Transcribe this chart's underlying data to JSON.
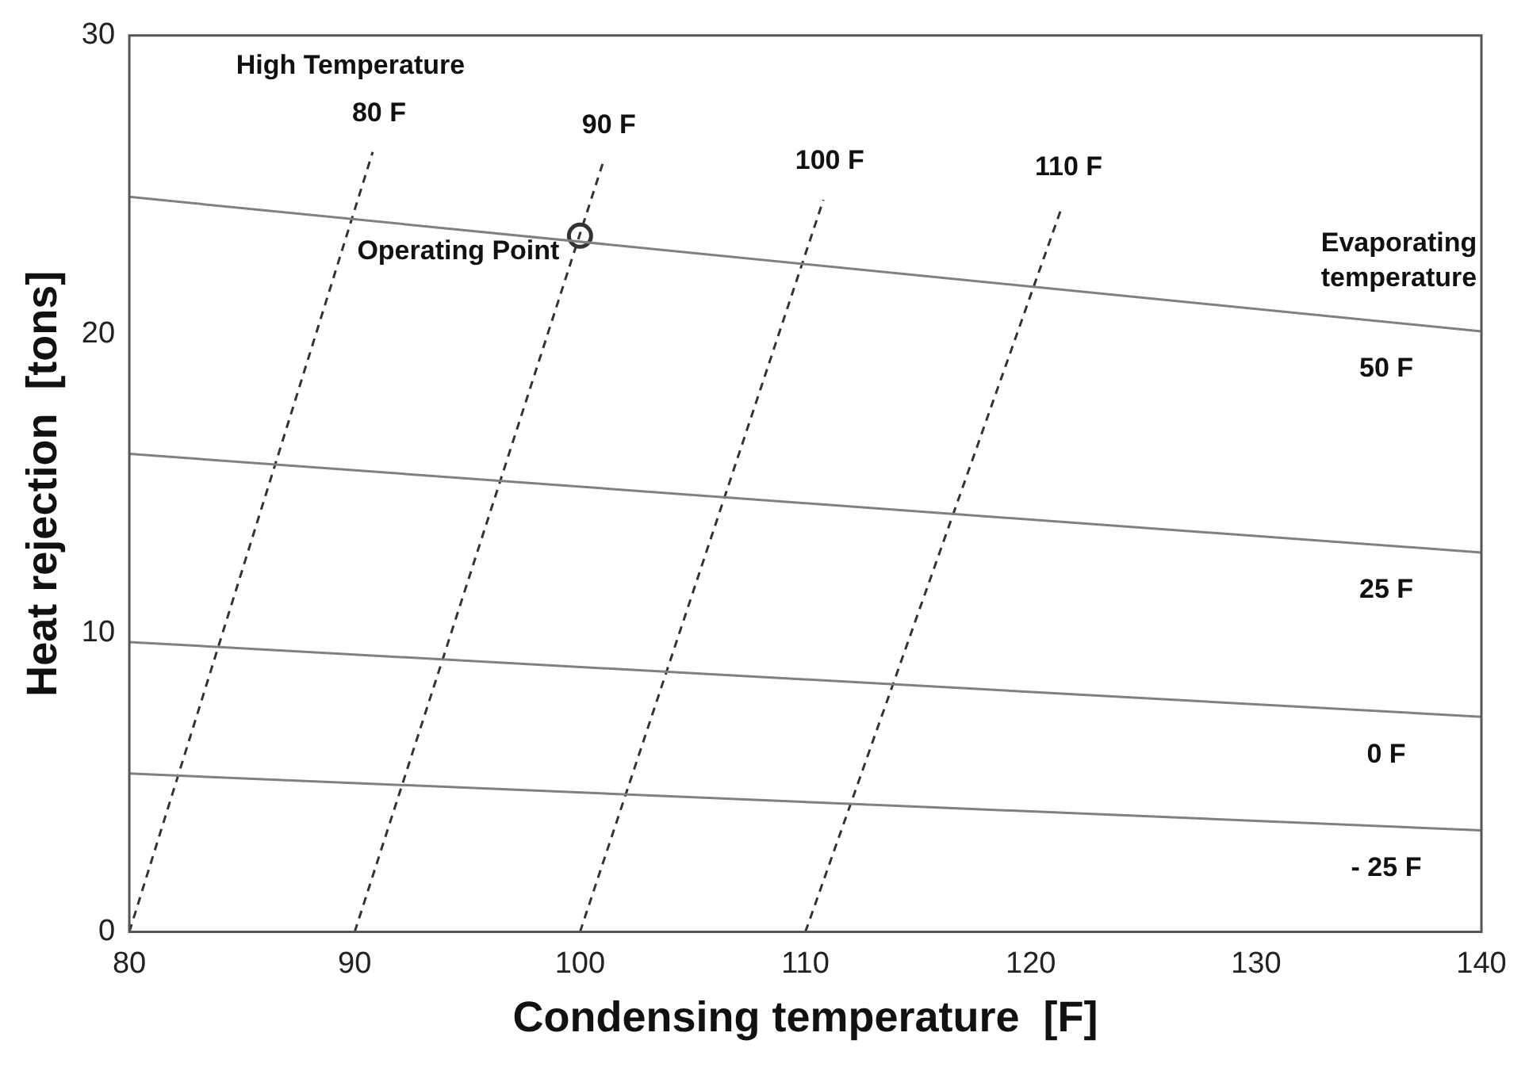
{
  "chart_data": {
    "type": "line",
    "xlabel": "Condensing temperature  [F]",
    "ylabel": "Heat rejection  [tons]",
    "xlim": [
      80,
      140
    ],
    "ylim": [
      0,
      30
    ],
    "xticks": [
      80,
      90,
      100,
      110,
      120,
      130,
      140
    ],
    "yticks": [
      0,
      10,
      20,
      30
    ],
    "grid": false,
    "legend": false,
    "series": [
      {
        "name": "50 F",
        "color": "#808080",
        "line_style": "solid",
        "marker": "none",
        "x": [
          80,
          140
        ],
        "values": [
          24.6,
          20.1
        ]
      },
      {
        "name": "25 F",
        "color": "#808080",
        "line_style": "solid",
        "marker": "none",
        "x": [
          80,
          140
        ],
        "values": [
          16.0,
          12.7
        ]
      },
      {
        "name": "0 F",
        "color": "#808080",
        "line_style": "solid",
        "marker": "none",
        "x": [
          80,
          140
        ],
        "values": [
          9.7,
          7.2
        ]
      },
      {
        "name": "- 25 F",
        "color": "#808080",
        "line_style": "solid",
        "marker": "none",
        "x": [
          80,
          140
        ],
        "values": [
          5.3,
          3.4
        ]
      },
      {
        "name": "80 F",
        "color": "#333333",
        "line_style": "dashed",
        "marker": "none",
        "x": [
          80,
          90.8
        ],
        "values": [
          0,
          26.1
        ]
      },
      {
        "name": "90 F",
        "color": "#333333",
        "line_style": "dashed",
        "marker": "none",
        "x": [
          90,
          101
        ],
        "values": [
          0,
          25.7
        ]
      },
      {
        "name": "100 F",
        "color": "#333333",
        "line_style": "dashed",
        "marker": "none",
        "x": [
          100,
          110.8
        ],
        "values": [
          0,
          24.5
        ]
      },
      {
        "name": "110 F",
        "color": "#333333",
        "line_style": "dashed",
        "marker": "none",
        "x": [
          110,
          121.4
        ],
        "values": [
          0,
          24.3
        ]
      },
      {
        "name": "Operating Point",
        "type": "scatter",
        "color": "#333333",
        "marker": "circle",
        "x": [
          100
        ],
        "values": [
          23.3
        ]
      }
    ],
    "annotations": [
      "Evaporating\ntemperature",
      "High Temperature"
    ]
  }
}
